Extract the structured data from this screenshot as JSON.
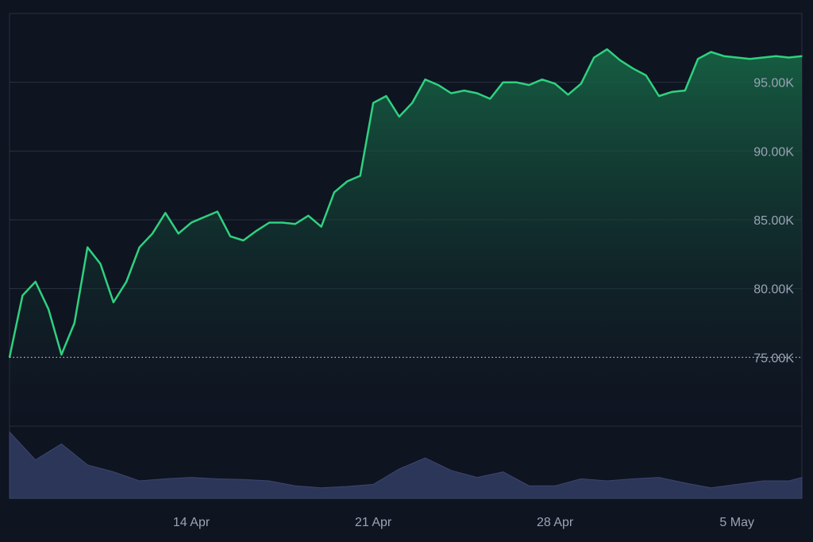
{
  "chart_data": [
    {
      "type": "area",
      "series": [
        {
          "x": [
            "2025-04-07T00:00",
            "2025-04-07T12:00",
            "2025-04-08T00:00",
            "2025-04-08T12:00",
            "2025-04-09T00:00",
            "2025-04-09T12:00",
            "2025-04-10T00:00",
            "2025-04-10T12:00",
            "2025-04-11T00:00",
            "2025-04-11T12:00",
            "2025-04-12T00:00",
            "2025-04-12T12:00",
            "2025-04-13T00:00",
            "2025-04-13T12:00",
            "2025-04-14T00:00",
            "2025-04-14T12:00",
            "2025-04-15T00:00",
            "2025-04-15T12:00",
            "2025-04-16T00:00",
            "2025-04-16T12:00",
            "2025-04-17T00:00",
            "2025-04-17T12:00",
            "2025-04-18T00:00",
            "2025-04-18T12:00",
            "2025-04-19T00:00",
            "2025-04-19T12:00",
            "2025-04-20T00:00",
            "2025-04-20T12:00",
            "2025-04-21T00:00",
            "2025-04-21T12:00",
            "2025-04-22T00:00",
            "2025-04-22T12:00",
            "2025-04-23T00:00",
            "2025-04-23T12:00",
            "2025-04-24T00:00",
            "2025-04-24T12:00",
            "2025-04-25T00:00",
            "2025-04-25T12:00",
            "2025-04-26T00:00",
            "2025-04-26T12:00",
            "2025-04-27T00:00",
            "2025-04-27T12:00",
            "2025-04-28T00:00",
            "2025-04-28T12:00",
            "2025-04-29T00:00",
            "2025-04-29T12:00",
            "2025-04-30T00:00",
            "2025-04-30T12:00",
            "2025-05-01T00:00",
            "2025-05-01T12:00",
            "2025-05-02T00:00",
            "2025-05-02T12:00",
            "2025-05-03T00:00",
            "2025-05-03T12:00",
            "2025-05-04T00:00",
            "2025-05-04T12:00",
            "2025-05-05T00:00",
            "2025-05-05T12:00",
            "2025-05-06T00:00",
            "2025-05-06T12:00",
            "2025-05-07T00:00",
            "2025-05-07T12:00"
          ],
          "y": [
            75000,
            79500,
            80500,
            78500,
            75200,
            77500,
            83000,
            81800,
            79000,
            80500,
            83000,
            84000,
            85500,
            84000,
            84800,
            85200,
            85600,
            83800,
            83500,
            84200,
            84800,
            84800,
            84700,
            85300,
            84500,
            87000,
            87800,
            88200,
            93500,
            94000,
            92500,
            93500,
            95200,
            94800,
            94200,
            94400,
            94200,
            93800,
            95000,
            95000,
            94800,
            95200,
            94900,
            94100,
            94900,
            96800,
            97400,
            96600,
            96000,
            95500,
            94000,
            94300,
            94400,
            96700,
            97200,
            96900,
            96800,
            96700,
            96800,
            96900,
            96800,
            96900
          ]
        }
      ],
      "y_ticks": [
        "75.00K",
        "80.00K",
        "85.00K",
        "90.00K",
        "95.00K"
      ],
      "y_tick_values": [
        75000,
        80000,
        85000,
        90000,
        95000
      ],
      "x_ticks": [
        "14 Apr",
        "21 Apr",
        "28 Apr",
        "5 May"
      ],
      "x_tick_values": [
        "2025-04-14T00:00",
        "2025-04-21T00:00",
        "2025-04-28T00:00",
        "2025-05-05T00:00"
      ],
      "xlim": [
        "2025-04-07T00:00",
        "2025-05-07T12:00"
      ],
      "ylim": [
        70000,
        100000
      ],
      "reference_line": 75000,
      "grid": true,
      "colors": {
        "line": "#2fd17f",
        "fill_top": "#176b48",
        "fill_bottom": "#0f1421",
        "background": "#0f1421",
        "grid": "#2a3140",
        "tick_text": "#9aa3b5",
        "reference_line": "#c9ced8"
      }
    },
    {
      "type": "area",
      "series": [
        {
          "x": [
            "2025-04-07T00:00",
            "2025-04-08T00:00",
            "2025-04-09T00:00",
            "2025-04-10T00:00",
            "2025-04-11T00:00",
            "2025-04-12T00:00",
            "2025-04-13T00:00",
            "2025-04-14T00:00",
            "2025-04-15T00:00",
            "2025-04-16T00:00",
            "2025-04-17T00:00",
            "2025-04-18T00:00",
            "2025-04-19T00:00",
            "2025-04-20T00:00",
            "2025-04-21T00:00",
            "2025-04-22T00:00",
            "2025-04-23T00:00",
            "2025-04-24T00:00",
            "2025-04-25T00:00",
            "2025-04-26T00:00",
            "2025-04-27T00:00",
            "2025-04-28T00:00",
            "2025-04-29T00:00",
            "2025-04-30T00:00",
            "2025-05-01T00:00",
            "2025-05-02T00:00",
            "2025-05-03T00:00",
            "2025-05-04T00:00",
            "2025-05-05T00:00",
            "2025-05-06T00:00",
            "2025-05-07T00:00",
            "2025-05-07T12:00"
          ],
          "y": [
            0.95,
            0.55,
            0.78,
            0.48,
            0.38,
            0.25,
            0.28,
            0.3,
            0.28,
            0.27,
            0.25,
            0.18,
            0.15,
            0.17,
            0.2,
            0.42,
            0.58,
            0.4,
            0.3,
            0.38,
            0.18,
            0.18,
            0.28,
            0.25,
            0.28,
            0.3,
            0.22,
            0.15,
            0.2,
            0.25,
            0.25,
            0.3
          ]
        }
      ],
      "ylim": [
        0,
        1
      ],
      "colors": {
        "fill": "#2c3658",
        "stroke": "#3a4670"
      }
    }
  ]
}
